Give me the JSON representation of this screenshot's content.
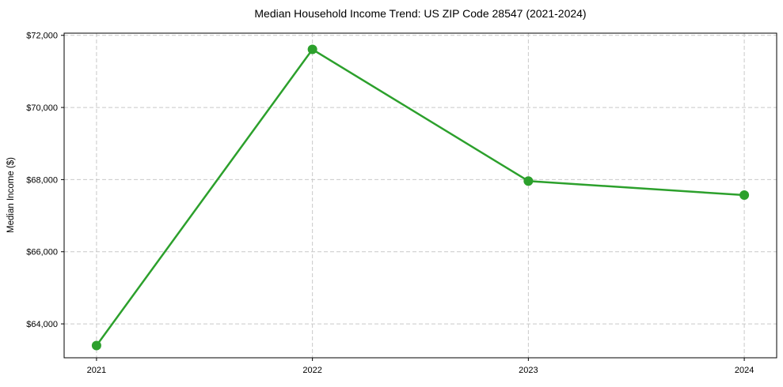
{
  "chart_data": {
    "type": "line",
    "title": "Median Household Income Trend: US ZIP Code 28547 (2021-2024)",
    "xlabel": "",
    "ylabel": "Median Income ($)",
    "x": [
      2021,
      2022,
      2023,
      2024
    ],
    "xtick_labels": [
      "2021",
      "2022",
      "2023",
      "2024"
    ],
    "series": [
      {
        "name": "Median household income",
        "values": [
          63400,
          71610,
          67960,
          67570
        ]
      }
    ],
    "ytick_values": [
      64000,
      66000,
      68000,
      70000,
      72000
    ],
    "ytick_labels": [
      "$64,000",
      "$66,000",
      "$68,000",
      "$70,000",
      "$72,000"
    ],
    "xlim": [
      2020.85,
      2024.15
    ],
    "ylim": [
      63060,
      72060
    ],
    "grid": true,
    "grid_style": "dashed",
    "legend_position": "none",
    "line_color": "#2ca02c",
    "marker": "circle",
    "marker_color": "#2ca02c",
    "grid_color": "#c9c9c9",
    "spine_color": "#000000",
    "background_color": "#ffffff"
  }
}
